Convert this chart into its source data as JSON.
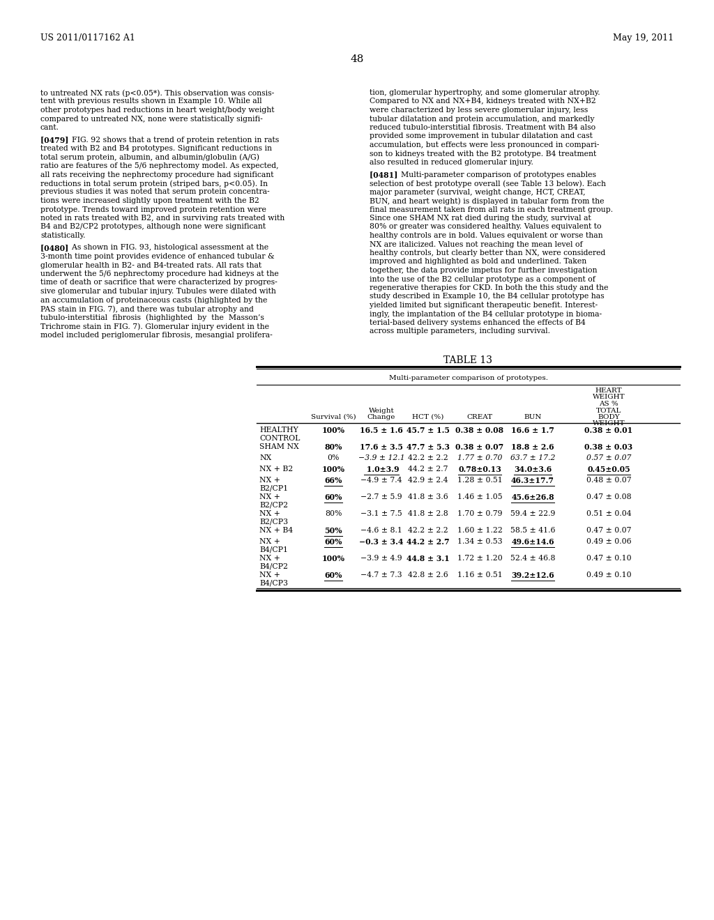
{
  "page_number": "48",
  "patent_number": "US 2011/0117162 A1",
  "patent_date": "May 19, 2011",
  "background_color": "#ffffff",
  "text_color": "#000000",
  "left_column_text": [
    "to untreated NX rats (p<0.05*). This observation was consis-",
    "tent with previous results shown in Example 10. While all",
    "other prototypes had reductions in heart weight/body weight",
    "compared to untreated NX, none were statistically signifi-",
    "cant.",
    "",
    "[0479]   FIG. 92 shows that a trend of protein retention in rats",
    "treated with B2 and B4 prototypes. Significant reductions in",
    "total serum protein, albumin, and albumin/globulin (A/G)",
    "ratio are features of the 5/6 nephrectomy model. As expected,",
    "all rats receiving the nephrectomy procedure had significant",
    "reductions in total serum protein (striped bars, p<0.05). In",
    "previous studies it was noted that serum protein concentra-",
    "tions were increased slightly upon treatment with the B2",
    "prototype. Trends toward improved protein retention were",
    "noted in rats treated with B2, and in surviving rats treated with",
    "B4 and B2/CP2 prototypes, although none were significant",
    "statistically.",
    "",
    "[0480]   As shown in FIG. 93, histological assessment at the",
    "3-month time point provides evidence of enhanced tubular &",
    "glomerular health in B2- and B4-treated rats. All rats that",
    "underwent the 5/6 nephrectomy procedure had kidneys at the",
    "time of death or sacrifice that were characterized by progres-",
    "sive glomerular and tubular injury. Tubules were dilated with",
    "an accumulation of proteinaceous casts (highlighted by the",
    "PAS stain in FIG. 7), and there was tubular atrophy and",
    "tubulo-interstitial  fibrosis  (highlighted  by  the  Masson’s",
    "Trichrome stain in FIG. 7). Glomerular injury evident in the",
    "model included periglomerular fibrosis, mesangial prolifera-"
  ],
  "right_column_text": [
    "tion, glomerular hypertrophy, and some glomerular atrophy.",
    "Compared to NX and NX+B4, kidneys treated with NX+B2",
    "were characterized by less severe glomerular injury, less",
    "tubular dilatation and protein accumulation, and markedly",
    "reduced tubulo-interstitial fibrosis. Treatment with B4 also",
    "provided some improvement in tubular dilatation and cast",
    "accumulation, but effects were less pronounced in compari-",
    "son to kidneys treated with the B2 prototype. B4 treatment",
    "also resulted in reduced glomerular injury.",
    "",
    "[0481]   Multi-parameter comparison of prototypes enables",
    "selection of best prototype overall (see Table 13 below). Each",
    "major parameter (survival, weight change, HCT, CREAT,",
    "BUN, and heart weight) is displayed in tabular form from the",
    "final measurement taken from all rats in each treatment group.",
    "Since one SHAM NX rat died during the study, survival at",
    "80% or greater was considered healthy. Values equivalent to",
    "healthy controls are in bold. Values equivalent or worse than",
    "NX are italicized. Values not reaching the mean level of",
    "healthy controls, but clearly better than NX, were considered",
    "improved and highlighted as bold and underlined. Taken",
    "together, the data provide impetus for further investigation",
    "into the use of the B2 cellular prototype as a component of",
    "regenerative therapies for CKD. In both the this study and the",
    "study described in Example 10, the B4 cellular prototype has",
    "yielded limited but significant therapeutic benefit. Interest-",
    "ingly, the implantation of the B4 cellular prototype in bioma-",
    "terial-based delivery systems enhanced the effects of B4",
    "across multiple parameters, including survival."
  ],
  "table_title": "TABLE 13",
  "table_subtitle": "Multi-parameter comparison of prototypes.",
  "rows": [
    {
      "label": "HEALTHY\nCONTROL",
      "survival": "100%",
      "survival_bold": true,
      "survival_underline": false,
      "weight": "16.5 ± 1.6",
      "weight_bold": true,
      "weight_underline": false,
      "weight_italic": false,
      "hct": "45.7 ± 1.5",
      "hct_bold": true,
      "hct_underline": false,
      "hct_italic": false,
      "creat": "0.38 ± 0.08",
      "creat_bold": true,
      "creat_underline": false,
      "creat_italic": false,
      "bun": "16.6 ± 1.7",
      "bun_bold": true,
      "bun_underline": false,
      "bun_italic": false,
      "hw": "0.38 ± 0.01",
      "hw_bold": true,
      "hw_underline": false,
      "hw_italic": false
    },
    {
      "label": "SHAM NX",
      "survival": "80%",
      "survival_bold": true,
      "survival_underline": false,
      "weight": "17.6 ± 3.5",
      "weight_bold": true,
      "weight_underline": false,
      "weight_italic": false,
      "hct": "47.7 ± 5.3",
      "hct_bold": true,
      "hct_underline": false,
      "hct_italic": false,
      "creat": "0.38 ± 0.07",
      "creat_bold": true,
      "creat_underline": false,
      "creat_italic": false,
      "bun": "18.8 ± 2.6",
      "bun_bold": true,
      "bun_underline": false,
      "bun_italic": false,
      "hw": "0.38 ± 0.03",
      "hw_bold": true,
      "hw_underline": false,
      "hw_italic": false
    },
    {
      "label": "NX",
      "survival": "0%",
      "survival_bold": false,
      "survival_underline": false,
      "weight": "−3.9 ± 12.1",
      "weight_bold": false,
      "weight_underline": false,
      "weight_italic": true,
      "hct": "42.2 ± 2.2",
      "hct_bold": false,
      "hct_underline": false,
      "hct_italic": false,
      "creat": "1.77 ± 0.70",
      "creat_bold": false,
      "creat_underline": false,
      "creat_italic": true,
      "bun": "63.7 ± 17.2",
      "bun_bold": false,
      "bun_underline": false,
      "bun_italic": true,
      "hw": "0.57 ± 0.07",
      "hw_bold": false,
      "hw_underline": false,
      "hw_italic": true
    },
    {
      "label": "NX + B2",
      "survival": "100%",
      "survival_bold": true,
      "survival_underline": false,
      "weight": " 1.0±3.9",
      "weight_bold": true,
      "weight_underline": true,
      "weight_italic": false,
      "hct": "44.2 ± 2.7",
      "hct_bold": false,
      "hct_underline": false,
      "hct_italic": false,
      "creat": "0.78±0.13",
      "creat_bold": true,
      "creat_underline": true,
      "creat_italic": false,
      "bun": "34.0±3.6",
      "bun_bold": true,
      "bun_underline": true,
      "bun_italic": false,
      "hw": "0.45±0.05",
      "hw_bold": true,
      "hw_underline": true,
      "hw_italic": false
    },
    {
      "label": "NX +\nB2/CP1",
      "survival": "66%",
      "survival_bold": true,
      "survival_underline": true,
      "weight": "−4.9 ± 7.4",
      "weight_bold": false,
      "weight_underline": false,
      "weight_italic": false,
      "hct": "42.9 ± 2.4",
      "hct_bold": false,
      "hct_underline": false,
      "hct_italic": false,
      "creat": "1.28 ± 0.51",
      "creat_bold": false,
      "creat_underline": false,
      "creat_italic": false,
      "bun": "46.3±17.7",
      "bun_bold": true,
      "bun_underline": true,
      "bun_italic": false,
      "hw": "0.48 ± 0.07",
      "hw_bold": false,
      "hw_underline": false,
      "hw_italic": false
    },
    {
      "label": "NX +\nB2/CP2",
      "survival": "60%",
      "survival_bold": true,
      "survival_underline": true,
      "weight": "−2.7 ± 5.9",
      "weight_bold": false,
      "weight_underline": false,
      "weight_italic": false,
      "hct": "41.8 ± 3.6",
      "hct_bold": false,
      "hct_underline": false,
      "hct_italic": false,
      "creat": "1.46 ± 1.05",
      "creat_bold": false,
      "creat_underline": false,
      "creat_italic": false,
      "bun": "45.6±26.8",
      "bun_bold": true,
      "bun_underline": true,
      "bun_italic": false,
      "hw": "0.47 ± 0.08",
      "hw_bold": false,
      "hw_underline": false,
      "hw_italic": false
    },
    {
      "label": "NX +\nB2/CP3",
      "survival": "80%",
      "survival_bold": false,
      "survival_underline": false,
      "weight": "−3.1 ± 7.5",
      "weight_bold": false,
      "weight_underline": false,
      "weight_italic": false,
      "hct": "41.8 ± 2.8",
      "hct_bold": false,
      "hct_underline": false,
      "hct_italic": false,
      "creat": "1.70 ± 0.79",
      "creat_bold": false,
      "creat_underline": false,
      "creat_italic": false,
      "bun": "59.4 ± 22.9",
      "bun_bold": false,
      "bun_underline": false,
      "bun_italic": false,
      "hw": "0.51 ± 0.04",
      "hw_bold": false,
      "hw_underline": false,
      "hw_italic": false
    },
    {
      "label": "NX + B4",
      "survival": "50%",
      "survival_bold": true,
      "survival_underline": true,
      "weight": "−4.6 ± 8.1",
      "weight_bold": false,
      "weight_underline": false,
      "weight_italic": false,
      "hct": "42.2 ± 2.2",
      "hct_bold": false,
      "hct_underline": false,
      "hct_italic": false,
      "creat": "1.60 ± 1.22",
      "creat_bold": false,
      "creat_underline": false,
      "creat_italic": false,
      "bun": "58.5 ± 41.6",
      "bun_bold": false,
      "bun_underline": false,
      "bun_italic": false,
      "hw": "0.47 ± 0.07",
      "hw_bold": false,
      "hw_underline": false,
      "hw_italic": false
    },
    {
      "label": "NX +\nB4/CP1",
      "survival": "60%",
      "survival_bold": true,
      "survival_underline": true,
      "weight": "−0.3 ± 3.4",
      "weight_bold": true,
      "weight_underline": false,
      "weight_italic": false,
      "hct": "44.2 ± 2.7",
      "hct_bold": true,
      "hct_underline": false,
      "hct_italic": false,
      "creat": "1.34 ± 0.53",
      "creat_bold": false,
      "creat_underline": false,
      "creat_italic": false,
      "bun": "49.6±14.6",
      "bun_bold": true,
      "bun_underline": true,
      "bun_italic": false,
      "hw": "0.49 ± 0.06",
      "hw_bold": false,
      "hw_underline": false,
      "hw_italic": false
    },
    {
      "label": "NX +\nB4/CP2",
      "survival": "100%",
      "survival_bold": true,
      "survival_underline": false,
      "weight": "−3.9 ± 4.9",
      "weight_bold": false,
      "weight_underline": false,
      "weight_italic": false,
      "hct": "44.8 ± 3.1",
      "hct_bold": true,
      "hct_underline": false,
      "hct_italic": false,
      "creat": "1.72 ± 1.20",
      "creat_bold": false,
      "creat_underline": false,
      "creat_italic": false,
      "bun": "52.4 ± 46.8",
      "bun_bold": false,
      "bun_underline": false,
      "bun_italic": false,
      "hw": "0.47 ± 0.10",
      "hw_bold": false,
      "hw_underline": false,
      "hw_italic": false
    },
    {
      "label": "NX +\nB4/CP3",
      "survival": "60%",
      "survival_bold": true,
      "survival_underline": true,
      "weight": "−4.7 ± 7.3",
      "weight_bold": false,
      "weight_underline": false,
      "weight_italic": false,
      "hct": "42.8 ± 2.6",
      "hct_bold": false,
      "hct_underline": false,
      "hct_italic": false,
      "creat": "1.16 ± 0.51",
      "creat_bold": false,
      "creat_underline": false,
      "creat_italic": false,
      "bun": "39.2±12.6",
      "bun_bold": true,
      "bun_underline": true,
      "bun_italic": false,
      "hw": "0.49 ± 0.10",
      "hw_bold": false,
      "hw_underline": false,
      "hw_italic": false
    }
  ]
}
